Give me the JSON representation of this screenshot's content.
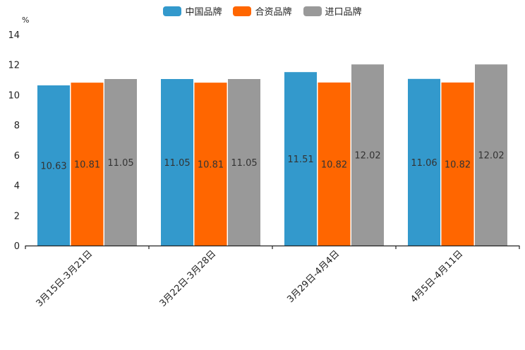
{
  "chart_data": {
    "type": "bar",
    "unit_label": "%",
    "categories": [
      "3月15日-3月21日",
      "3月22日-3月28日",
      "3月29日-4月4日",
      "4月5日-4月11日"
    ],
    "series": [
      {
        "name": "中国品牌",
        "color": "#3399cc",
        "values": [
          10.63,
          11.05,
          11.51,
          11.06
        ],
        "labels": [
          "10.63",
          "11.05",
          "11.51",
          "11.06"
        ]
      },
      {
        "name": "合资品牌",
        "color": "#ff6600",
        "values": [
          10.81,
          10.81,
          10.82,
          10.82
        ],
        "labels": [
          "10.81",
          "10.81",
          "10.82",
          "10.82"
        ]
      },
      {
        "name": "进口品牌",
        "color": "#999999",
        "values": [
          11.05,
          11.05,
          12.02,
          12.02
        ],
        "labels": [
          "11.05",
          "11.05",
          "12.02",
          "12.02"
        ]
      }
    ],
    "ylim": [
      0,
      14
    ],
    "yticks": [
      "0",
      "2",
      "4",
      "6",
      "8",
      "10",
      "12",
      "14"
    ],
    "grid": false,
    "legend_position": "top-center"
  }
}
